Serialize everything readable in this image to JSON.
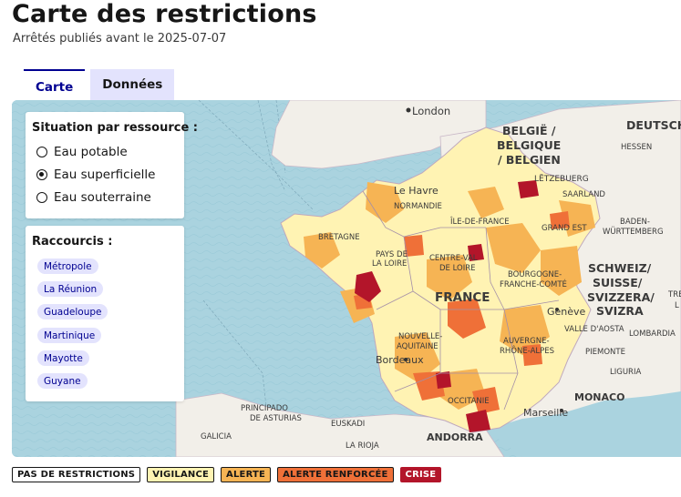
{
  "header": {
    "title": "Carte des restrictions",
    "subtitle": "Arrêtés publiés avant le 2025-07-07"
  },
  "tabs": [
    {
      "label": "Carte",
      "active": true
    },
    {
      "label": "Données",
      "active": false
    }
  ],
  "resource_panel": {
    "title": "Situation par ressource :",
    "options": [
      {
        "label": "Eau potable",
        "checked": false
      },
      {
        "label": "Eau superficielle",
        "checked": true
      },
      {
        "label": "Eau souterraine",
        "checked": false
      }
    ]
  },
  "shortcuts_panel": {
    "title": "Raccourcis :",
    "items": [
      "Métropole",
      "La Réunion",
      "Guadeloupe",
      "Martinique",
      "Mayotte",
      "Guyane"
    ]
  },
  "map": {
    "place_labels": [
      "London",
      "BELGIË /",
      "BELGIQUE",
      "/ BELGIEN",
      "DEUTSCH",
      "HESSEN",
      "LËTZEBUERG",
      "SAARLAND",
      "Le Havre",
      "NORMANDIE",
      "ÎLE-DE-FRANCE",
      "GRAND EST",
      "BADEN-",
      "WÜRTTEMBERG",
      "BRETAGNE",
      "PAYS DE",
      "LA LOIRE",
      "CENTRE-VAL",
      "DE LOIRE",
      "FRANCE",
      "BOURGOGNE-",
      "FRANCHE-COMTÉ",
      "SCHWEIZ/",
      "SUISSE/",
      "SVIZZERA/",
      "SVIZRA",
      "Genève",
      "VALLE D'AOSTA",
      "LOMBARDIA",
      "NOUVELLE-",
      "AQUITAINE",
      "AUVERGNE-",
      "RHÔNE-ALPES",
      "PIEMONTE",
      "Bordeaux",
      "LIGURIA",
      "MONACO",
      "OCCITANIE",
      "Marseille",
      "PRINCIPADO",
      "DE ASTURIAS",
      "EUSKADI",
      "GALICIA",
      "LA RIOJA",
      "ANDORRA",
      "TRE",
      "L"
    ]
  },
  "legend": [
    {
      "label": "PAS DE RESTRICTIONS",
      "bg": "#ffffff",
      "fg": "#161616",
      "border": "#161616"
    },
    {
      "label": "VIGILANCE",
      "bg": "#fff3b3",
      "fg": "#161616",
      "border": "#161616"
    },
    {
      "label": "ALERTE",
      "bg": "#f6b454",
      "fg": "#161616",
      "border": "#161616"
    },
    {
      "label": "ALERTE RENFORCÉE",
      "bg": "#ef7038",
      "fg": "#161616",
      "border": "#161616"
    },
    {
      "label": "CRISE",
      "bg": "#b3152a",
      "fg": "#ffffff",
      "border": "#b3152a"
    }
  ],
  "colors": {
    "accent": "#000091",
    "sea": "#aad3df",
    "land": "#f2efe9"
  }
}
